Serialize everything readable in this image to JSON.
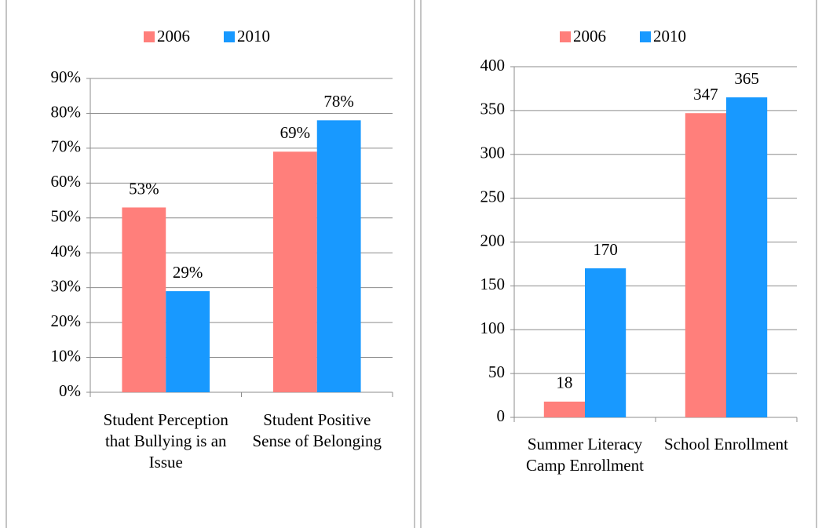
{
  "chart_data": [
    {
      "type": "bar",
      "categories": [
        "Student Perception that Bullying is an Issue",
        "Student Positive Sense of Belonging"
      ],
      "series": [
        {
          "name": "2006",
          "color": "#ff7f7b",
          "values": [
            53,
            69
          ],
          "value_labels": [
            "53%",
            "69%"
          ]
        },
        {
          "name": "2010",
          "color": "#1899ff",
          "values": [
            29,
            78
          ],
          "value_labels": [
            "29%",
            "78%"
          ]
        }
      ],
      "ylim": [
        0,
        90
      ],
      "yticks": [
        {
          "value": 0,
          "label": "0%"
        },
        {
          "value": 10,
          "label": "10%"
        },
        {
          "value": 20,
          "label": "20%"
        },
        {
          "value": 30,
          "label": "30%"
        },
        {
          "value": 40,
          "label": "40%"
        },
        {
          "value": 50,
          "label": "50%"
        },
        {
          "value": 60,
          "label": "60%"
        },
        {
          "value": 70,
          "label": "70%"
        },
        {
          "value": 80,
          "label": "80%"
        },
        {
          "value": 90,
          "label": "90%"
        }
      ],
      "grid": true,
      "legend": "top"
    },
    {
      "type": "bar",
      "categories": [
        "Summer Literacy Camp Enrollment",
        "School Enrollment"
      ],
      "series": [
        {
          "name": "2006",
          "color": "#ff7f7b",
          "values": [
            18,
            347
          ]
        },
        {
          "name": "2010",
          "color": "#1899ff",
          "values": [
            170,
            365
          ]
        }
      ],
      "ylim": [
        0,
        400
      ],
      "yticks": [
        0,
        50,
        100,
        150,
        200,
        250,
        300,
        350,
        400
      ],
      "grid": true,
      "legend": "top"
    }
  ]
}
